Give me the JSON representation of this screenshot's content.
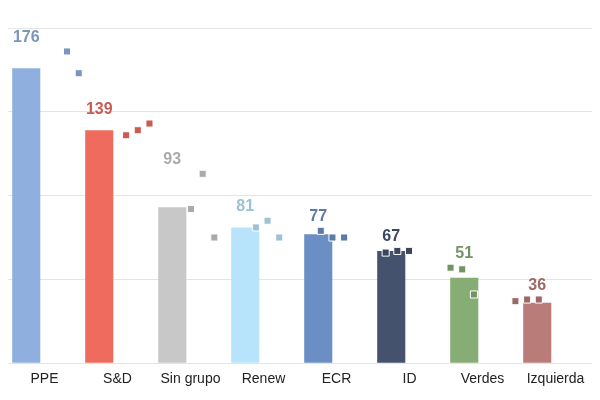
{
  "chart_data": {
    "type": "bar",
    "categories": [
      "PPE",
      "S&D",
      "Sin grupo",
      "Renew",
      "ECR",
      "ID",
      "Verdes",
      "Izquierda"
    ],
    "values": [
      176,
      139,
      93,
      81,
      77,
      67,
      51,
      36
    ],
    "colors": [
      "#8fb0de",
      "#ee6b5e",
      "#c8c8c8",
      "#b7e4fb",
      "#6b8fc4",
      "#45526e",
      "#86ad74",
      "#b97c78"
    ],
    "points": [
      [
        186,
        173
      ],
      [
        136,
        139,
        143
      ],
      [
        92,
        113,
        75
      ],
      [
        81,
        85,
        75
      ],
      [
        79,
        75,
        75
      ],
      [
        66,
        67,
        67
      ],
      [
        57,
        56,
        41
      ],
      [
        37,
        38,
        38
      ]
    ],
    "ylim": [
      0,
      200
    ],
    "yticks": [
      0,
      50,
      100,
      150,
      200
    ],
    "grid": true,
    "data_labels": true,
    "tick_labels": "x"
  }
}
